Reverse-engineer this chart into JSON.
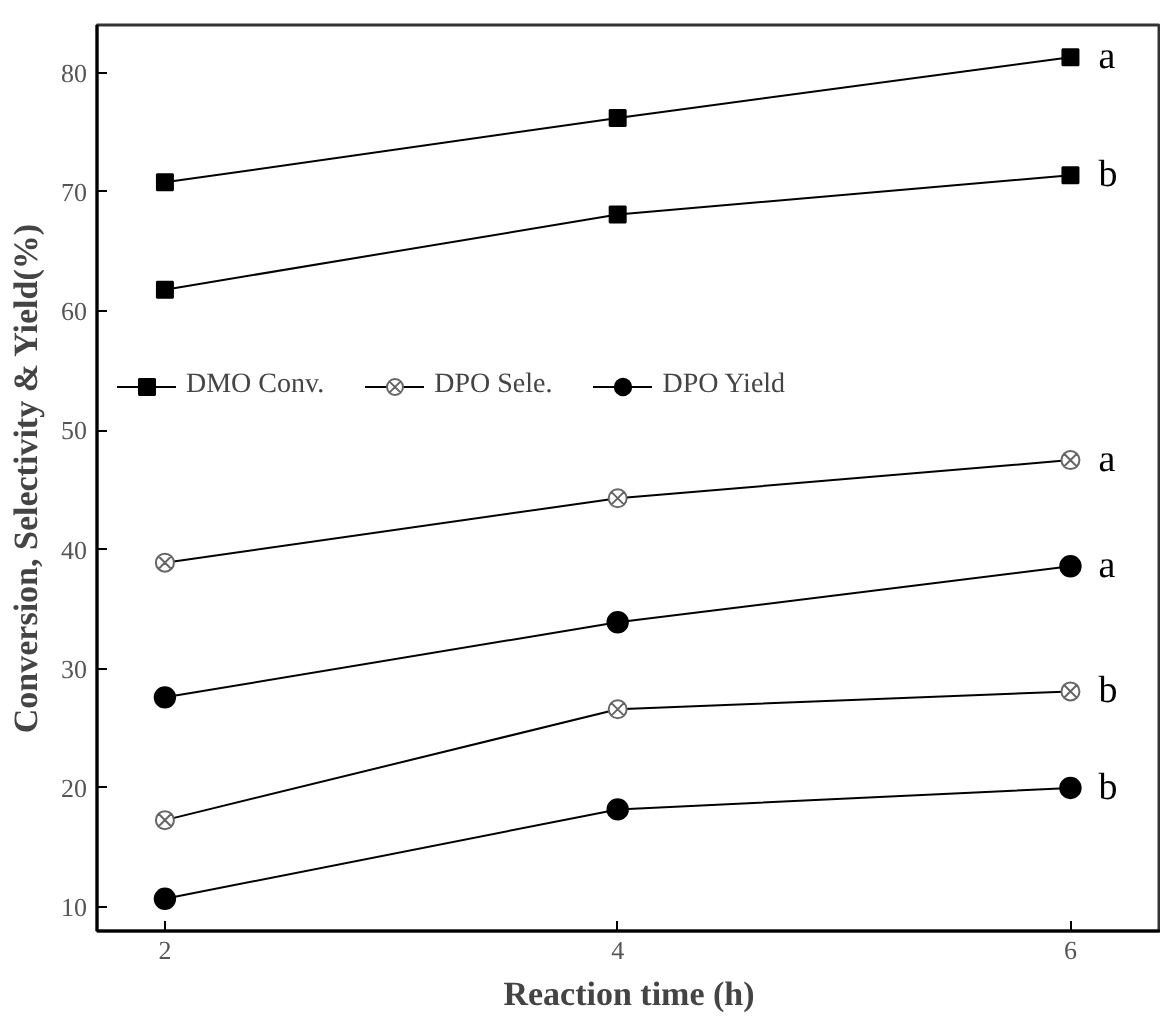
{
  "chart_data": {
    "type": "line",
    "xlabel": "Reaction time (h)",
    "ylabel": "Conversion, Selectivity & Yield(%)",
    "x": [
      2,
      4,
      6
    ],
    "xlim": [
      1.7,
      6.4
    ],
    "ylim": [
      8,
      84
    ],
    "xticks": [
      2,
      4,
      6
    ],
    "yticks": [
      10,
      20,
      30,
      40,
      50,
      60,
      70,
      80
    ],
    "series": [
      {
        "name": "DMO Conv.",
        "color": "#000000",
        "marker": "square",
        "values": [
          70.8,
          76.2,
          81.3
        ]
      },
      {
        "name": "DPO Sele.",
        "color": "#000000",
        "marker": "cross",
        "values": [
          38.9,
          44.3,
          47.5
        ]
      },
      {
        "name": "DPO Yield",
        "color": "#000000",
        "marker": "circle",
        "values": [
          27.6,
          33.9,
          38.6
        ]
      },
      {
        "color": "#000000",
        "marker": "square",
        "values": [
          61.8,
          68.1,
          71.4
        ]
      },
      {
        "color": "#000000",
        "marker": "cross",
        "values": [
          17.3,
          26.6,
          28.1
        ]
      },
      {
        "color": "#000000",
        "marker": "circle",
        "values": [
          10.7,
          18.2,
          20.0
        ]
      }
    ],
    "annotations": [
      "a",
      "a",
      "a",
      "b",
      "b",
      "b"
    ],
    "legend": "center",
    "grid": false,
    "line_style": "solid"
  }
}
